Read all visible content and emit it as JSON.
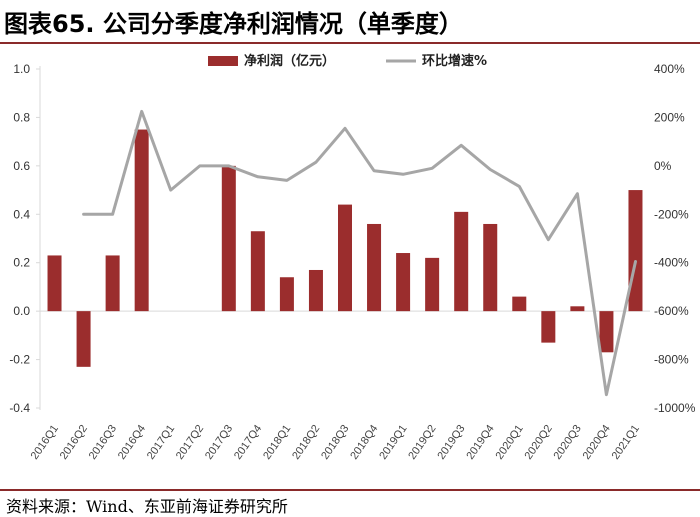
{
  "header": {
    "title": "图表65. 公司分季度净利润情况（单季度）"
  },
  "footer": {
    "source": "资料来源：Wind、东亚前海证券研究所"
  },
  "chart_data": {
    "type": "bar",
    "categories": [
      "2016Q1",
      "2016Q2",
      "2016Q3",
      "2016Q4",
      "2017Q1",
      "2017Q2",
      "2017Q3",
      "2017Q4",
      "2018Q1",
      "2018Q2",
      "2018Q3",
      "2018Q4",
      "2019Q1",
      "2019Q2",
      "2019Q3",
      "2019Q4",
      "2020Q1",
      "2020Q2",
      "2020Q3",
      "2020Q4",
      "2021Q1"
    ],
    "series": [
      {
        "name": "净利润（亿元）",
        "type": "bar",
        "axis": "left",
        "color": "#9b2d2d",
        "values": [
          0.23,
          -0.23,
          0.23,
          0.75,
          0.0,
          0.0,
          0.6,
          0.33,
          0.14,
          0.17,
          0.44,
          0.36,
          0.24,
          0.22,
          0.41,
          0.36,
          0.06,
          -0.13,
          0.02,
          -0.17,
          0.5
        ]
      },
      {
        "name": "环比增速%",
        "type": "line",
        "axis": "right",
        "color": "#a6a6a6",
        "values": [
          null,
          -200,
          -200,
          225,
          -100,
          0,
          0,
          -45,
          -60,
          15,
          155,
          -20,
          -35,
          -10,
          85,
          -15,
          -85,
          -305,
          -115,
          -945,
          -395
        ]
      }
    ],
    "left_axis": {
      "ylim": [
        -0.4,
        1.0
      ],
      "ticks": [
        -0.4,
        -0.2,
        0.0,
        0.2,
        0.4,
        0.6,
        0.8,
        1.0
      ],
      "tick_labels": [
        "-0.4",
        "-0.2",
        "0.0",
        "0.2",
        "0.4",
        "0.6",
        "0.8",
        "1.0"
      ]
    },
    "right_axis": {
      "ylim": [
        -1000,
        400
      ],
      "ticks": [
        -1000,
        -800,
        -600,
        -400,
        -200,
        0,
        200,
        400
      ],
      "tick_labels": [
        "-1000%",
        "-800%",
        "-600%",
        "-400%",
        "-200%",
        "0%",
        "200%",
        "400%"
      ]
    },
    "legend_position": "top-center",
    "grid": false
  }
}
